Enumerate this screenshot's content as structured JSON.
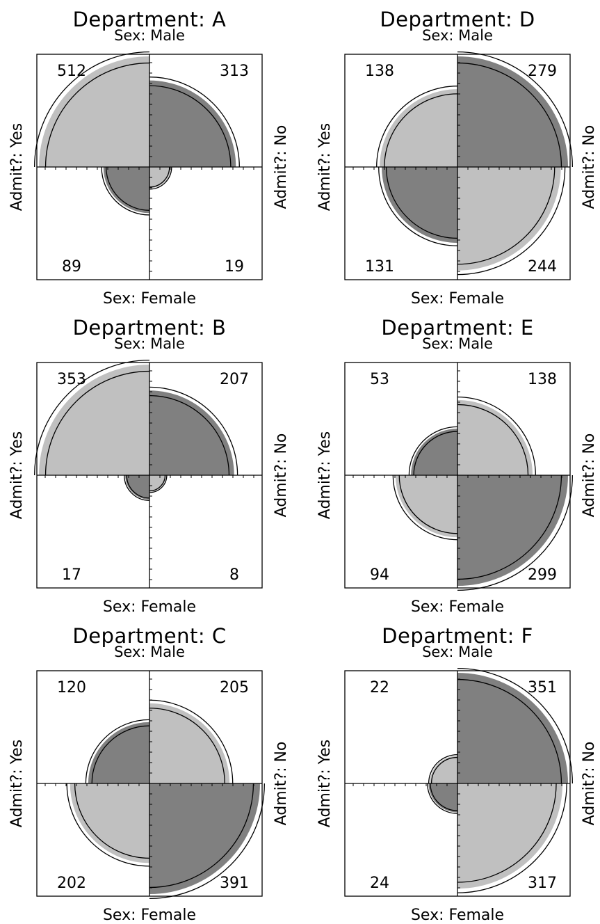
{
  "figure": {
    "colors": {
      "admitted_male_shade": "#c0c0c0",
      "rejected_male_shade": "#808080",
      "outline": "#000000",
      "background": "#ffffff"
    }
  },
  "chart_data": [
    {
      "type": "fourfold",
      "title": "Department: A",
      "top_label": "Sex: Male",
      "bottom_label": "Sex: Female",
      "left_label": "Admit?: Yes",
      "right_label": "Admit?: No",
      "cells": {
        "top_left": 512,
        "top_right": 313,
        "bottom_left": 89,
        "bottom_right": 19
      },
      "grid": false
    },
    {
      "type": "fourfold",
      "title": "Department: D",
      "top_label": "Sex: Male",
      "bottom_label": "Sex: Female",
      "left_label": "Admit?: Yes",
      "right_label": "Admit?: No",
      "cells": {
        "top_left": 138,
        "top_right": 279,
        "bottom_left": 131,
        "bottom_right": 244
      },
      "grid": false
    },
    {
      "type": "fourfold",
      "title": "Department: B",
      "top_label": "Sex: Male",
      "bottom_label": "Sex: Female",
      "left_label": "Admit?: Yes",
      "right_label": "Admit?: No",
      "cells": {
        "top_left": 353,
        "top_right": 207,
        "bottom_left": 17,
        "bottom_right": 8
      },
      "grid": false
    },
    {
      "type": "fourfold",
      "title": "Department: E",
      "top_label": "Sex: Male",
      "bottom_label": "Sex: Female",
      "left_label": "Admit?: Yes",
      "right_label": "Admit?: No",
      "cells": {
        "top_left": 53,
        "top_right": 138,
        "bottom_left": 94,
        "bottom_right": 299
      },
      "grid": false
    },
    {
      "type": "fourfold",
      "title": "Department: C",
      "top_label": "Sex: Male",
      "bottom_label": "Sex: Female",
      "left_label": "Admit?: Yes",
      "right_label": "Admit?: No",
      "cells": {
        "top_left": 120,
        "top_right": 205,
        "bottom_left": 202,
        "bottom_right": 391
      },
      "grid": false
    },
    {
      "type": "fourfold",
      "title": "Department: F",
      "top_label": "Sex: Male",
      "bottom_label": "Sex: Female",
      "left_label": "Admit?: Yes",
      "right_label": "Admit?: No",
      "cells": {
        "top_left": 22,
        "top_right": 351,
        "bottom_left": 24,
        "bottom_right": 317
      },
      "grid": false
    }
  ]
}
